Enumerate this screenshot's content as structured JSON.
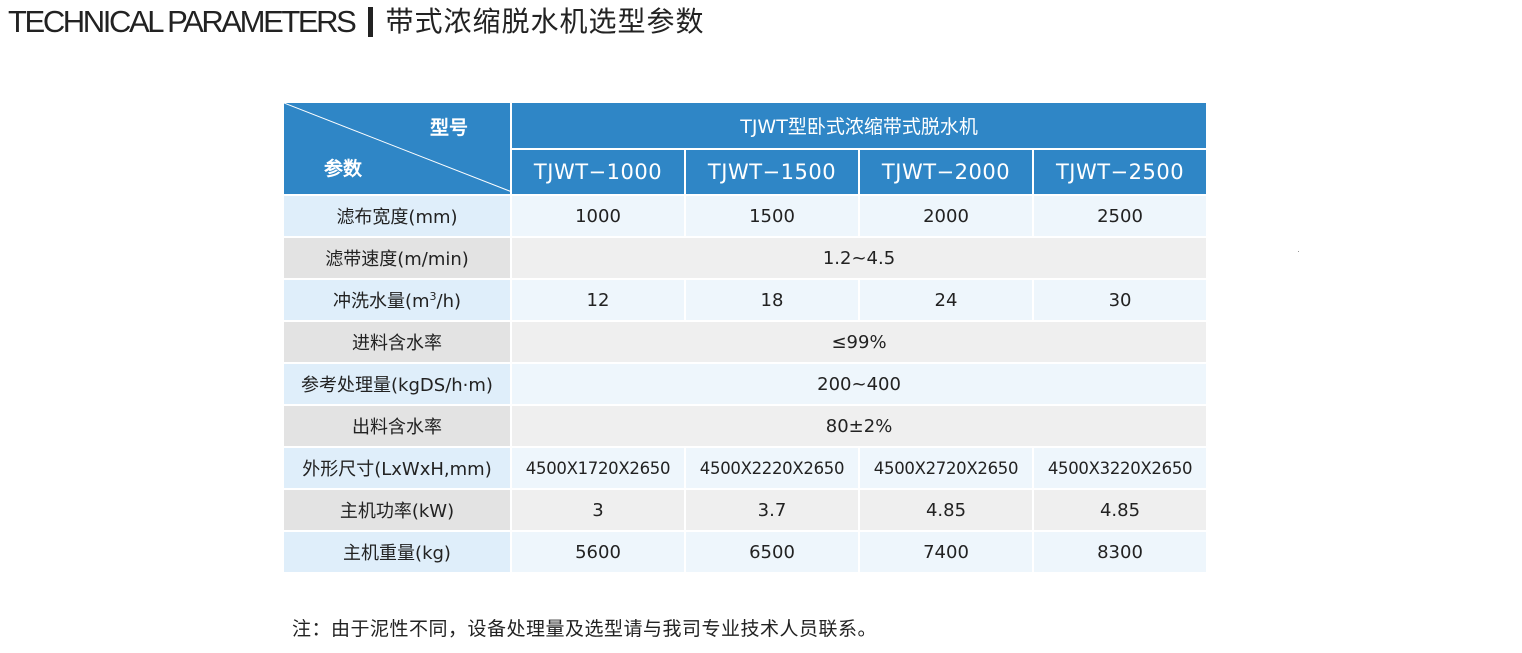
{
  "heading": {
    "en": "TECHNICAL PARAMETERS",
    "cn": "带式浓缩脱水机选型参数"
  },
  "table": {
    "corner_model_label": "型号",
    "corner_param_label": "参数",
    "group_title": "TJWT型卧式浓缩带式脱水机",
    "models": [
      "TJWT−1000",
      "TJWT−1500",
      "TJWT−2000",
      "TJWT−2500"
    ],
    "rows": [
      {
        "label": "滤布宽度(mm)",
        "values": [
          "1000",
          "1500",
          "2000",
          "2500"
        ]
      },
      {
        "label": "滤带速度(m/min)",
        "merged": "1.2~4.5"
      },
      {
        "label_pre": "冲洗水量(m",
        "label_sup": "3",
        "label_post": "/h)",
        "values": [
          "12",
          "18",
          "24",
          "30"
        ]
      },
      {
        "label": "进料含水率",
        "merged": "≤99%"
      },
      {
        "label": "参考处理量(kgDS/h·m)",
        "merged": "200~400"
      },
      {
        "label": "出料含水率",
        "merged": "80±2%"
      },
      {
        "label": "外形尺寸(LxWxH,mm)",
        "values": [
          "4500X1720X2650",
          "4500X2220X2650",
          "4500X2720X2650",
          "4500X3220X2650"
        ]
      },
      {
        "label": "主机功率(kW)",
        "values": [
          "3",
          "3.7",
          "4.85",
          "4.85"
        ]
      },
      {
        "label": "主机重量(kg)",
        "values": [
          "5600",
          "6500",
          "7400",
          "8300"
        ]
      }
    ]
  },
  "note": "注：由于泥性不同，设备处理量及选型请与我司专业技术人员联系。",
  "colors": {
    "header_blue": "#2f86c6",
    "row_blue_label": "#dfeefa",
    "row_blue_value": "#eef6fc",
    "row_gray_label": "#e3e3e3",
    "row_gray_value": "#efefef"
  }
}
